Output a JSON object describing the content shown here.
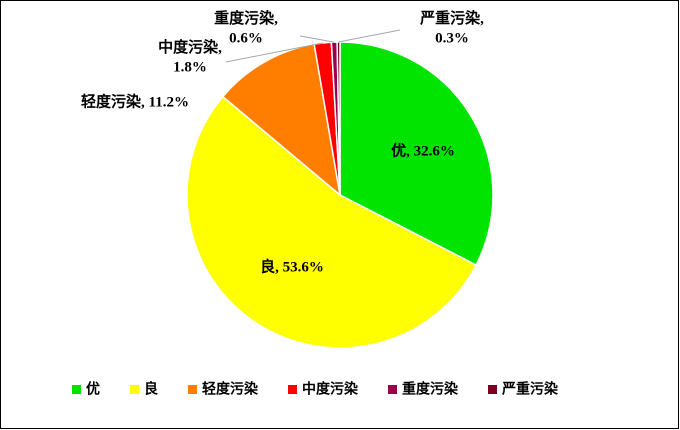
{
  "chart_data": {
    "type": "pie",
    "categories": [
      "优",
      "良",
      "轻度污染",
      "中度污染",
      "重度污染",
      "严重污染"
    ],
    "values": [
      32.6,
      53.6,
      11.2,
      1.8,
      0.6,
      0.3
    ],
    "value_labels": [
      "优, 32.6%",
      "良, 53.6%",
      "轻度污染, 11.2%",
      "中度污染, 1.8%",
      "重度污染, 0.6%",
      "严重污染, 0.3%"
    ],
    "colors": [
      "#00e400",
      "#ffff00",
      "#ff7e00",
      "#ff0000",
      "#99004c",
      "#7e0023"
    ],
    "legend": "bottom"
  }
}
